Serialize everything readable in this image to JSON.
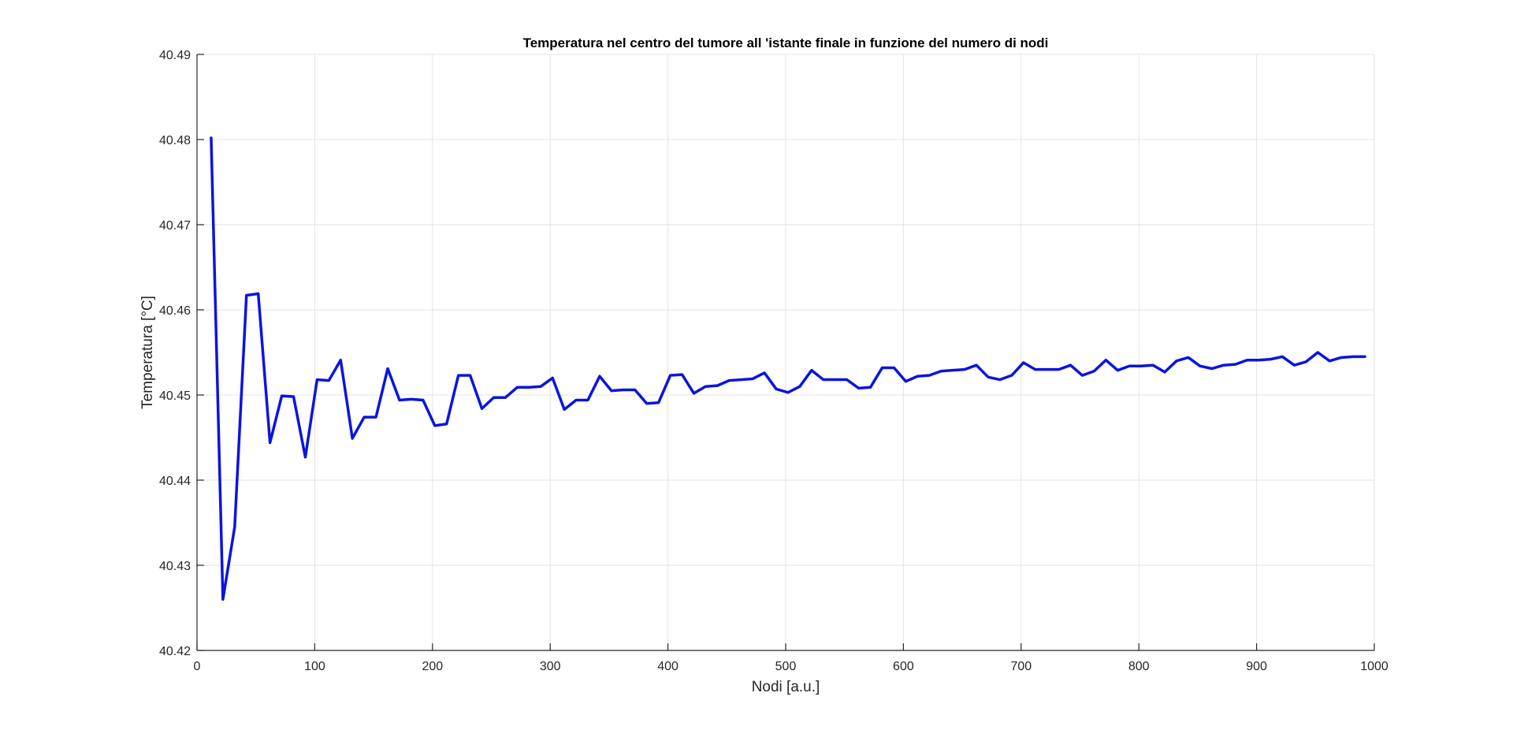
{
  "chart_data": {
    "type": "line",
    "title": "Temperatura nel centro del tumore all 'istante finale in funzione del numero di nodi",
    "xlabel": "Nodi [a.u.]",
    "ylabel": "Temperatura [°C]",
    "xlim": [
      0,
      1000
    ],
    "ylim": [
      40.42,
      40.49
    ],
    "xticks": [
      0,
      100,
      200,
      300,
      400,
      500,
      600,
      700,
      800,
      900,
      1000
    ],
    "xtick_labels": [
      "0",
      "100",
      "200",
      "300",
      "400",
      "500",
      "600",
      "700",
      "800",
      "900",
      "1000"
    ],
    "yticks": [
      40.42,
      40.43,
      40.44,
      40.45,
      40.46,
      40.47,
      40.48,
      40.49
    ],
    "ytick_labels": [
      "40.42",
      "40.43",
      "40.44",
      "40.45",
      "40.46",
      "40.47",
      "40.48",
      "40.49"
    ],
    "grid": true,
    "legend": "none",
    "colors": {
      "line": "#0a14e0",
      "grid": "#e3e3e3",
      "axis": "#262626"
    },
    "series": [
      {
        "x": [
          12,
          22,
          32,
          42,
          52,
          62,
          72,
          82,
          92,
          102,
          112,
          122,
          132,
          142,
          152,
          162,
          172,
          182,
          192,
          202,
          212,
          222,
          232,
          242,
          252,
          262,
          272,
          282,
          292,
          302,
          312,
          322,
          332,
          342,
          352,
          362,
          372,
          382,
          392,
          402,
          412,
          422,
          432,
          442,
          452,
          462,
          472,
          482,
          492,
          502,
          512,
          522,
          532,
          542,
          552,
          562,
          572,
          582,
          592,
          602,
          612,
          622,
          632,
          642,
          652,
          662,
          672,
          682,
          692,
          702,
          712,
          722,
          732,
          742,
          752,
          762,
          772,
          782,
          792,
          802,
          812,
          822,
          832,
          842,
          852,
          862,
          872,
          882,
          892,
          902,
          912,
          922,
          932,
          942,
          952,
          962,
          972,
          982,
          992
        ],
        "values": [
          40.4802,
          40.426,
          40.4345,
          40.4617,
          40.4619,
          40.4444,
          40.4499,
          40.4498,
          40.4427,
          40.4518,
          40.4517,
          40.4541,
          40.4449,
          40.4474,
          40.4474,
          40.4531,
          40.4494,
          40.4495,
          40.4494,
          40.4464,
          40.4466,
          40.4523,
          40.4523,
          40.4484,
          40.4497,
          40.4497,
          40.4509,
          40.4509,
          40.451,
          40.452,
          40.4483,
          40.4494,
          40.4494,
          40.4522,
          40.4505,
          40.4506,
          40.4506,
          40.449,
          40.4491,
          40.4523,
          40.4524,
          40.4502,
          40.451,
          40.4511,
          40.4517,
          40.4518,
          40.4519,
          40.4526,
          40.4507,
          40.4503,
          40.451,
          40.4529,
          40.4518,
          40.4518,
          40.4518,
          40.4508,
          40.4509,
          40.4532,
          40.4532,
          40.4516,
          40.4522,
          40.4523,
          40.4528,
          40.4529,
          40.453,
          40.4535,
          40.4521,
          40.4518,
          40.4523,
          40.4538,
          40.453,
          40.453,
          40.453,
          40.4535,
          40.4523,
          40.4528,
          40.4541,
          40.4529,
          40.4534,
          40.4534,
          40.4535,
          40.4527,
          40.454,
          40.4544,
          40.4534,
          40.4531,
          40.4535,
          40.4536,
          40.4541,
          40.4541,
          40.4542,
          40.4545,
          40.4535,
          40.4539,
          40.455,
          40.454,
          40.4544,
          40.4545,
          40.4545
        ]
      }
    ]
  }
}
